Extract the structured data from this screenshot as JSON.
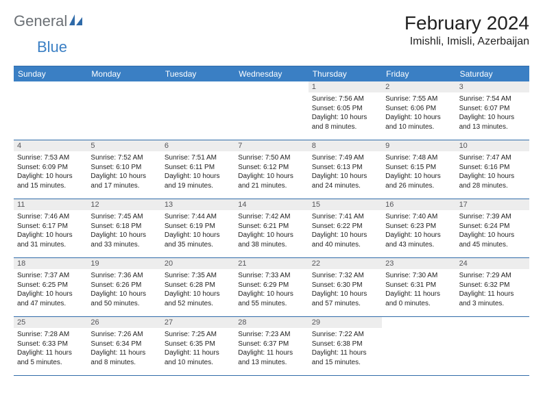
{
  "brand": {
    "word1": "General",
    "word2": "Blue"
  },
  "title": "February 2024",
  "location": "Imishli, Imisli, Azerbaijan",
  "colors": {
    "header_bg": "#3a7fc4",
    "header_text": "#ffffff",
    "daynum_bg": "#ededed",
    "daynum_text": "#555559",
    "border": "#2f6aa8",
    "logo_gray": "#6b7075",
    "logo_blue": "#3a7fc4"
  },
  "day_names": [
    "Sunday",
    "Monday",
    "Tuesday",
    "Wednesday",
    "Thursday",
    "Friday",
    "Saturday"
  ],
  "leading_blanks": 4,
  "days": [
    {
      "n": "1",
      "sr": "Sunrise: 7:56 AM",
      "ss": "Sunset: 6:05 PM",
      "dl": "Daylight: 10 hours and 8 minutes."
    },
    {
      "n": "2",
      "sr": "Sunrise: 7:55 AM",
      "ss": "Sunset: 6:06 PM",
      "dl": "Daylight: 10 hours and 10 minutes."
    },
    {
      "n": "3",
      "sr": "Sunrise: 7:54 AM",
      "ss": "Sunset: 6:07 PM",
      "dl": "Daylight: 10 hours and 13 minutes."
    },
    {
      "n": "4",
      "sr": "Sunrise: 7:53 AM",
      "ss": "Sunset: 6:09 PM",
      "dl": "Daylight: 10 hours and 15 minutes."
    },
    {
      "n": "5",
      "sr": "Sunrise: 7:52 AM",
      "ss": "Sunset: 6:10 PM",
      "dl": "Daylight: 10 hours and 17 minutes."
    },
    {
      "n": "6",
      "sr": "Sunrise: 7:51 AM",
      "ss": "Sunset: 6:11 PM",
      "dl": "Daylight: 10 hours and 19 minutes."
    },
    {
      "n": "7",
      "sr": "Sunrise: 7:50 AM",
      "ss": "Sunset: 6:12 PM",
      "dl": "Daylight: 10 hours and 21 minutes."
    },
    {
      "n": "8",
      "sr": "Sunrise: 7:49 AM",
      "ss": "Sunset: 6:13 PM",
      "dl": "Daylight: 10 hours and 24 minutes."
    },
    {
      "n": "9",
      "sr": "Sunrise: 7:48 AM",
      "ss": "Sunset: 6:15 PM",
      "dl": "Daylight: 10 hours and 26 minutes."
    },
    {
      "n": "10",
      "sr": "Sunrise: 7:47 AM",
      "ss": "Sunset: 6:16 PM",
      "dl": "Daylight: 10 hours and 28 minutes."
    },
    {
      "n": "11",
      "sr": "Sunrise: 7:46 AM",
      "ss": "Sunset: 6:17 PM",
      "dl": "Daylight: 10 hours and 31 minutes."
    },
    {
      "n": "12",
      "sr": "Sunrise: 7:45 AM",
      "ss": "Sunset: 6:18 PM",
      "dl": "Daylight: 10 hours and 33 minutes."
    },
    {
      "n": "13",
      "sr": "Sunrise: 7:44 AM",
      "ss": "Sunset: 6:19 PM",
      "dl": "Daylight: 10 hours and 35 minutes."
    },
    {
      "n": "14",
      "sr": "Sunrise: 7:42 AM",
      "ss": "Sunset: 6:21 PM",
      "dl": "Daylight: 10 hours and 38 minutes."
    },
    {
      "n": "15",
      "sr": "Sunrise: 7:41 AM",
      "ss": "Sunset: 6:22 PM",
      "dl": "Daylight: 10 hours and 40 minutes."
    },
    {
      "n": "16",
      "sr": "Sunrise: 7:40 AM",
      "ss": "Sunset: 6:23 PM",
      "dl": "Daylight: 10 hours and 43 minutes."
    },
    {
      "n": "17",
      "sr": "Sunrise: 7:39 AM",
      "ss": "Sunset: 6:24 PM",
      "dl": "Daylight: 10 hours and 45 minutes."
    },
    {
      "n": "18",
      "sr": "Sunrise: 7:37 AM",
      "ss": "Sunset: 6:25 PM",
      "dl": "Daylight: 10 hours and 47 minutes."
    },
    {
      "n": "19",
      "sr": "Sunrise: 7:36 AM",
      "ss": "Sunset: 6:26 PM",
      "dl": "Daylight: 10 hours and 50 minutes."
    },
    {
      "n": "20",
      "sr": "Sunrise: 7:35 AM",
      "ss": "Sunset: 6:28 PM",
      "dl": "Daylight: 10 hours and 52 minutes."
    },
    {
      "n": "21",
      "sr": "Sunrise: 7:33 AM",
      "ss": "Sunset: 6:29 PM",
      "dl": "Daylight: 10 hours and 55 minutes."
    },
    {
      "n": "22",
      "sr": "Sunrise: 7:32 AM",
      "ss": "Sunset: 6:30 PM",
      "dl": "Daylight: 10 hours and 57 minutes."
    },
    {
      "n": "23",
      "sr": "Sunrise: 7:30 AM",
      "ss": "Sunset: 6:31 PM",
      "dl": "Daylight: 11 hours and 0 minutes."
    },
    {
      "n": "24",
      "sr": "Sunrise: 7:29 AM",
      "ss": "Sunset: 6:32 PM",
      "dl": "Daylight: 11 hours and 3 minutes."
    },
    {
      "n": "25",
      "sr": "Sunrise: 7:28 AM",
      "ss": "Sunset: 6:33 PM",
      "dl": "Daylight: 11 hours and 5 minutes."
    },
    {
      "n": "26",
      "sr": "Sunrise: 7:26 AM",
      "ss": "Sunset: 6:34 PM",
      "dl": "Daylight: 11 hours and 8 minutes."
    },
    {
      "n": "27",
      "sr": "Sunrise: 7:25 AM",
      "ss": "Sunset: 6:35 PM",
      "dl": "Daylight: 11 hours and 10 minutes."
    },
    {
      "n": "28",
      "sr": "Sunrise: 7:23 AM",
      "ss": "Sunset: 6:37 PM",
      "dl": "Daylight: 11 hours and 13 minutes."
    },
    {
      "n": "29",
      "sr": "Sunrise: 7:22 AM",
      "ss": "Sunset: 6:38 PM",
      "dl": "Daylight: 11 hours and 15 minutes."
    }
  ]
}
